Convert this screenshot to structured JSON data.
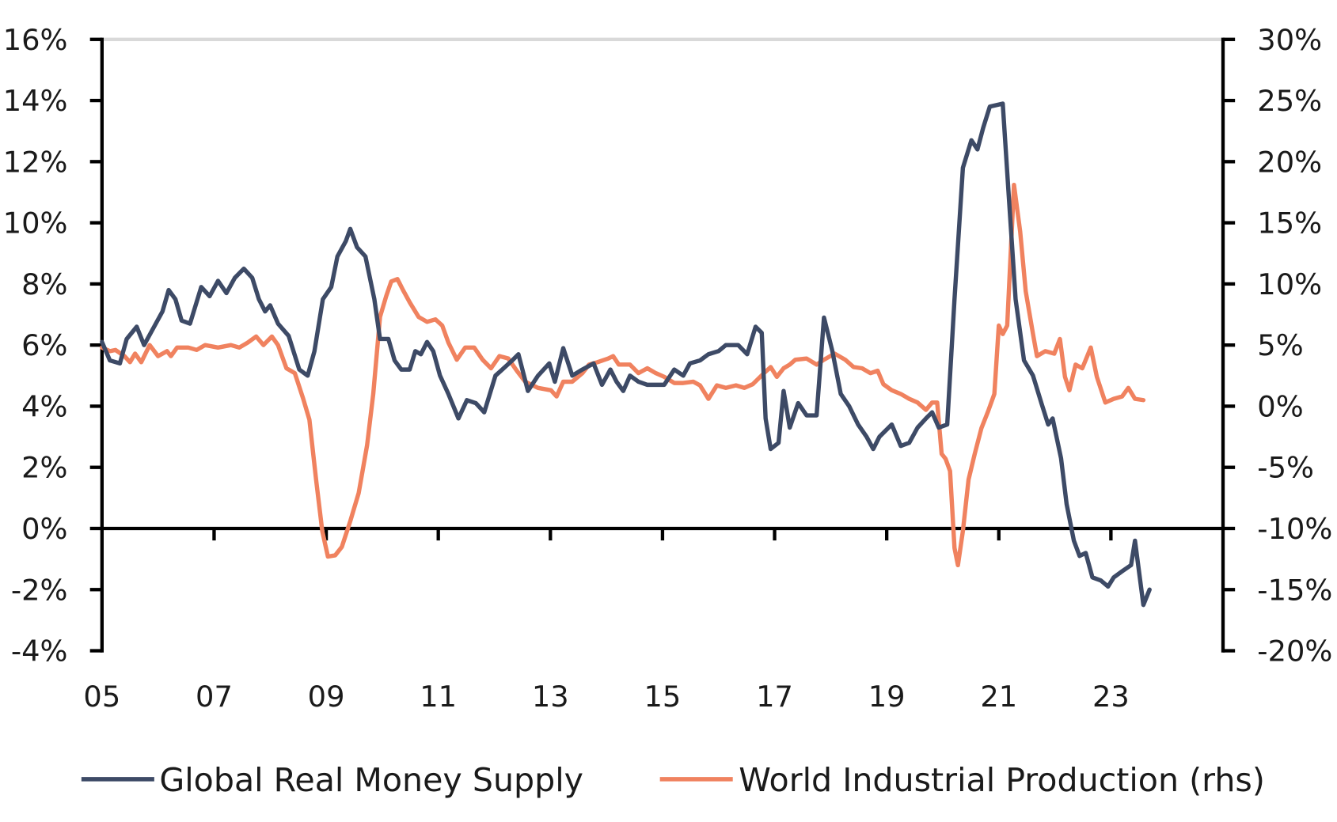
{
  "chart_data": {
    "type": "line",
    "title": "",
    "xlabel": "",
    "ylabel": "",
    "xlim": [
      2005,
      2025
    ],
    "x_ticks": [
      2005,
      2007,
      2009,
      2011,
      2013,
      2015,
      2017,
      2019,
      2021,
      2023
    ],
    "x_tick_labels": [
      "05",
      "07",
      "09",
      "11",
      "13",
      "15",
      "17",
      "19",
      "21",
      "23"
    ],
    "y_left": {
      "lim": [
        -4,
        16
      ],
      "ticks": [
        16,
        14,
        12,
        10,
        8,
        6,
        4,
        2,
        0,
        -2,
        -4
      ],
      "tick_labels": [
        "16%",
        "14%",
        "12%",
        "10%",
        "8%",
        "6%",
        "4%",
        "2%",
        "0%",
        "-2%",
        "-4%"
      ]
    },
    "y_right": {
      "lim": [
        -20,
        30
      ],
      "ticks": [
        30,
        25,
        20,
        15,
        10,
        5,
        0,
        -5,
        -10,
        -15,
        -20
      ],
      "tick_labels": [
        "30%",
        "25%",
        "20%",
        "15%",
        "10%",
        "5%",
        "0%",
        "-5%",
        "-10%",
        "-15%",
        "-20%"
      ]
    },
    "grid": "top line only",
    "legend_position": "bottom",
    "series": [
      {
        "name": "Global Real Money Supply",
        "axis": "left",
        "color": "#3d4a66",
        "x": [
          2005.0,
          2005.14,
          2005.32,
          2005.44,
          2005.62,
          2005.75,
          2005.93,
          2006.08,
          2006.19,
          2006.31,
          2006.42,
          2006.57,
          2006.77,
          2006.92,
          2007.07,
          2007.22,
          2007.37,
          2007.53,
          2007.68,
          2007.8,
          2007.91,
          2008.0,
          2008.14,
          2008.33,
          2008.52,
          2008.67,
          2008.79,
          2008.94,
          2009.09,
          2009.2,
          2009.35,
          2009.43,
          2009.55,
          2009.7,
          2009.86,
          2009.96,
          2010.11,
          2010.22,
          2010.34,
          2010.49,
          2010.59,
          2010.69,
          2010.8,
          2010.91,
          2011.03,
          2011.18,
          2011.36,
          2011.51,
          2011.67,
          2011.82,
          2012.02,
          2012.14,
          2012.32,
          2012.43,
          2012.6,
          2012.78,
          2012.98,
          2013.08,
          2013.23,
          2013.39,
          2013.57,
          2013.77,
          2013.92,
          2014.07,
          2014.18,
          2014.3,
          2014.42,
          2014.57,
          2014.73,
          2014.91,
          2015.03,
          2015.21,
          2015.37,
          2015.49,
          2015.67,
          2015.82,
          2016.0,
          2016.13,
          2016.25,
          2016.35,
          2016.51,
          2016.66,
          2016.77,
          2016.84,
          2016.93,
          2017.07,
          2017.16,
          2017.27,
          2017.42,
          2017.57,
          2017.75,
          2017.88,
          2018.03,
          2018.18,
          2018.33,
          2018.49,
          2018.64,
          2018.76,
          2018.87,
          2019.09,
          2019.25,
          2019.4,
          2019.55,
          2019.7,
          2019.81,
          2019.93,
          2020.08,
          2020.21,
          2020.36,
          2020.51,
          2020.62,
          2020.72,
          2020.84,
          2021.07,
          2021.18,
          2021.3,
          2021.45,
          2021.61,
          2021.76,
          2021.88,
          2021.96,
          2022.11,
          2022.21,
          2022.34,
          2022.44,
          2022.55,
          2022.67,
          2022.82,
          2022.95,
          2023.05,
          2023.2,
          2023.36,
          2023.43,
          2023.58,
          2023.69
        ],
        "values": [
          6.1,
          5.5,
          5.4,
          6.2,
          6.6,
          6.0,
          6.6,
          7.1,
          7.8,
          7.5,
          6.8,
          6.7,
          7.9,
          7.6,
          8.1,
          7.7,
          8.2,
          8.5,
          8.2,
          7.5,
          7.1,
          7.3,
          6.7,
          6.3,
          5.2,
          5.0,
          5.8,
          7.5,
          7.9,
          8.9,
          9.4,
          9.8,
          9.2,
          8.9,
          7.5,
          6.2,
          6.2,
          5.5,
          5.2,
          5.2,
          5.8,
          5.7,
          6.1,
          5.8,
          5.0,
          4.4,
          3.6,
          4.2,
          4.1,
          3.8,
          5.0,
          5.2,
          5.5,
          5.7,
          4.5,
          5.0,
          5.4,
          4.8,
          5.9,
          5.0,
          5.2,
          5.4,
          4.7,
          5.2,
          4.8,
          4.5,
          5.0,
          4.8,
          4.7,
          4.7,
          4.7,
          5.2,
          5.0,
          5.4,
          5.5,
          5.7,
          5.8,
          6.0,
          6.0,
          6.0,
          5.7,
          6.6,
          6.4,
          3.6,
          2.6,
          2.8,
          4.5,
          3.3,
          4.1,
          3.7,
          3.7,
          6.9,
          5.8,
          4.4,
          4.0,
          3.4,
          3.0,
          2.6,
          3.0,
          3.4,
          2.7,
          2.8,
          3.3,
          3.6,
          3.8,
          3.3,
          3.4,
          7.5,
          11.8,
          12.7,
          12.4,
          13.1,
          13.8,
          13.9,
          10.8,
          7.5,
          5.5,
          5.0,
          4.1,
          3.4,
          3.6,
          2.3,
          0.8,
          -0.4,
          -0.9,
          -0.8,
          -1.6,
          -1.7,
          -1.9,
          -1.6,
          -1.4,
          -1.2,
          -0.4,
          -2.5,
          -2.0
        ]
      },
      {
        "name": "World Industrial Production (rhs)",
        "axis": "right",
        "color": "#f0825f",
        "x": [
          2005.0,
          2005.14,
          2005.24,
          2005.4,
          2005.5,
          2005.59,
          2005.7,
          2005.85,
          2006.0,
          2006.16,
          2006.23,
          2006.34,
          2006.54,
          2006.69,
          2006.84,
          2007.07,
          2007.3,
          2007.45,
          2007.6,
          2007.75,
          2007.88,
          2008.03,
          2008.14,
          2008.29,
          2008.44,
          2008.59,
          2008.7,
          2008.82,
          2008.93,
          2009.03,
          2009.16,
          2009.28,
          2009.43,
          2009.58,
          2009.73,
          2009.84,
          2009.96,
          2010.07,
          2010.16,
          2010.27,
          2010.37,
          2010.49,
          2010.65,
          2010.8,
          2010.95,
          2011.07,
          2011.18,
          2011.33,
          2011.48,
          2011.64,
          2011.79,
          2011.94,
          2012.09,
          2012.25,
          2012.4,
          2012.55,
          2012.78,
          2013.01,
          2013.11,
          2013.23,
          2013.39,
          2013.57,
          2013.69,
          2013.84,
          2014.03,
          2014.12,
          2014.22,
          2014.42,
          2014.57,
          2014.73,
          2014.88,
          2015.03,
          2015.21,
          2015.37,
          2015.55,
          2015.67,
          2015.82,
          2015.97,
          2016.13,
          2016.31,
          2016.46,
          2016.61,
          2016.81,
          2016.93,
          2017.04,
          2017.16,
          2017.27,
          2017.37,
          2017.57,
          2017.75,
          2017.88,
          2018.07,
          2018.26,
          2018.41,
          2018.56,
          2018.71,
          2018.84,
          2018.94,
          2019.09,
          2019.25,
          2019.4,
          2019.55,
          2019.7,
          2019.81,
          2019.9,
          2019.98,
          2020.05,
          2020.13,
          2020.21,
          2020.27,
          2020.36,
          2020.46,
          2020.57,
          2020.69,
          2020.81,
          2020.92,
          2021.0,
          2021.07,
          2021.15,
          2021.27,
          2021.38,
          2021.48,
          2021.61,
          2021.68,
          2021.83,
          2021.99,
          2022.09,
          2022.18,
          2022.26,
          2022.37,
          2022.49,
          2022.64,
          2022.75,
          2022.9,
          2023.05,
          2023.2,
          2023.31,
          2023.43,
          2023.58
        ],
        "values": [
          4.8,
          4.5,
          4.6,
          4.1,
          3.6,
          4.3,
          3.6,
          5.0,
          4.1,
          4.5,
          4.1,
          4.8,
          4.8,
          4.6,
          5.0,
          4.8,
          5.0,
          4.8,
          5.2,
          5.7,
          5.0,
          5.7,
          5.0,
          3.1,
          2.7,
          0.6,
          -1.1,
          -6.0,
          -10.2,
          -12.3,
          -12.2,
          -11.5,
          -9.4,
          -7.1,
          -3.2,
          1.0,
          7.3,
          9.0,
          10.2,
          10.4,
          9.5,
          8.5,
          7.3,
          6.9,
          7.1,
          6.6,
          5.2,
          3.8,
          4.8,
          4.8,
          3.8,
          3.1,
          4.1,
          3.9,
          2.9,
          2.0,
          1.5,
          1.3,
          0.8,
          2.0,
          2.0,
          2.7,
          3.4,
          3.6,
          3.9,
          4.1,
          3.4,
          3.4,
          2.7,
          3.1,
          2.7,
          2.4,
          1.9,
          1.9,
          2.0,
          1.7,
          0.6,
          1.7,
          1.5,
          1.7,
          1.5,
          1.8,
          2.7,
          3.2,
          2.4,
          3.1,
          3.4,
          3.8,
          3.9,
          3.4,
          3.8,
          4.3,
          3.8,
          3.2,
          3.1,
          2.7,
          2.9,
          1.8,
          1.3,
          1.0,
          0.6,
          0.3,
          -0.3,
          0.3,
          0.3,
          -3.9,
          -4.3,
          -5.3,
          -11.6,
          -13.0,
          -10.2,
          -6.0,
          -3.9,
          -1.8,
          -0.4,
          1.0,
          6.6,
          5.9,
          6.6,
          18.1,
          14.3,
          9.4,
          5.9,
          4.1,
          4.5,
          4.3,
          5.5,
          2.4,
          1.3,
          3.4,
          3.1,
          4.8,
          2.4,
          0.3,
          0.6,
          0.8,
          1.5,
          0.6,
          0.5
        ]
      }
    ]
  }
}
